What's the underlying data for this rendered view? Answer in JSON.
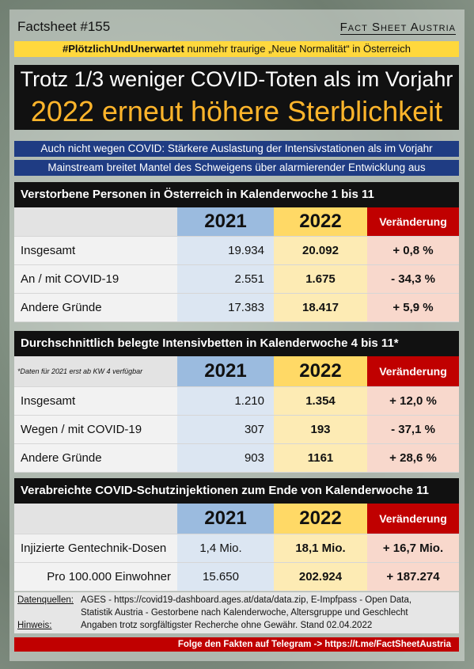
{
  "header": {
    "left": "Factsheet #155",
    "right": "Fact Sheet Austria"
  },
  "tagline": {
    "hashtag": "#PlötzlichUndUnerwartet",
    "text": " nunmehr traurige „Neue Normalität“ in Österreich"
  },
  "title_line1": "Trotz 1/3 weniger COVID-Toten als im Vorjahr",
  "title_line2": "2022 erneut höhere Sterblichkeit",
  "sub1": "Auch nicht wegen COVID: Stärkere Auslastung der Intensivstationen als im Vorjahr",
  "sub2": "Mainstream breitet Mantel des Schweigens über alarmierender Entwicklung aus",
  "sections": [
    {
      "title": "Verstorbene Personen in Österreich in Kalenderwoche 1 bis 11",
      "note": "",
      "h21": "2021",
      "h22": "2022",
      "hv": "Veränderung",
      "rows": [
        {
          "l": "Insgesamt",
          "a": "19.934",
          "b": "20.092",
          "c": "+ 0,8 %"
        },
        {
          "l": "An / mit COVID-19",
          "a": "2.551",
          "b": "1.675",
          "c": "- 34,3 %"
        },
        {
          "l": "Andere Gründe",
          "a": "17.383",
          "b": "18.417",
          "c": "+ 5,9 %"
        }
      ]
    },
    {
      "title": "Durchschnittlich belegte Intensivbetten in Kalenderwoche 4 bis 11*",
      "note": "*Daten für 2021 erst ab KW 4 verfügbar",
      "h21": "2021",
      "h22": "2022",
      "hv": "Veränderung",
      "rows": [
        {
          "l": "Insgesamt",
          "a": "1.210",
          "b": "1.354",
          "c": "+ 12,0 %"
        },
        {
          "l": "Wegen / mit COVID-19",
          "a": "307",
          "b": "193",
          "c": "- 37,1 %"
        },
        {
          "l": "Andere Gründe",
          "a": "903",
          "b": "1161",
          "c": "+ 28,6 %"
        }
      ]
    },
    {
      "title": "Verabreichte COVID-Schutzinjektionen zum Ende von Kalenderwoche 11",
      "note": "",
      "h21": "2021",
      "h22": "2022",
      "hv": "Veränderung",
      "rows": [
        {
          "l": "Injizierte Gentechnik-Dosen",
          "a": "1,4 Mio.",
          "b": "18,1 Mio.",
          "c": "+ 16,7 Mio."
        },
        {
          "l": "Pro 100.000 Einwohner",
          "a": "15.650",
          "b": "202.924",
          "c": "+ 187.274"
        }
      ]
    }
  ],
  "sources": {
    "k1": "Datenquellen:",
    "v1": "AGES - https://covid19-dashboard.ages.at/data/data.zip, E-Impfpass - Open Data,",
    "v2": "Statistik Austria - Gestorbene nach Kalenderwoche, Altersgruppe und Geschlecht",
    "k2": "Hinweis:",
    "v3": "Angaben trotz sorgfältigster Recherche ohne Gewähr. Stand 02.04.2022"
  },
  "footer": "Folge den Fakten auf Telegram  ->  https://t.me/FactSheetAustria"
}
